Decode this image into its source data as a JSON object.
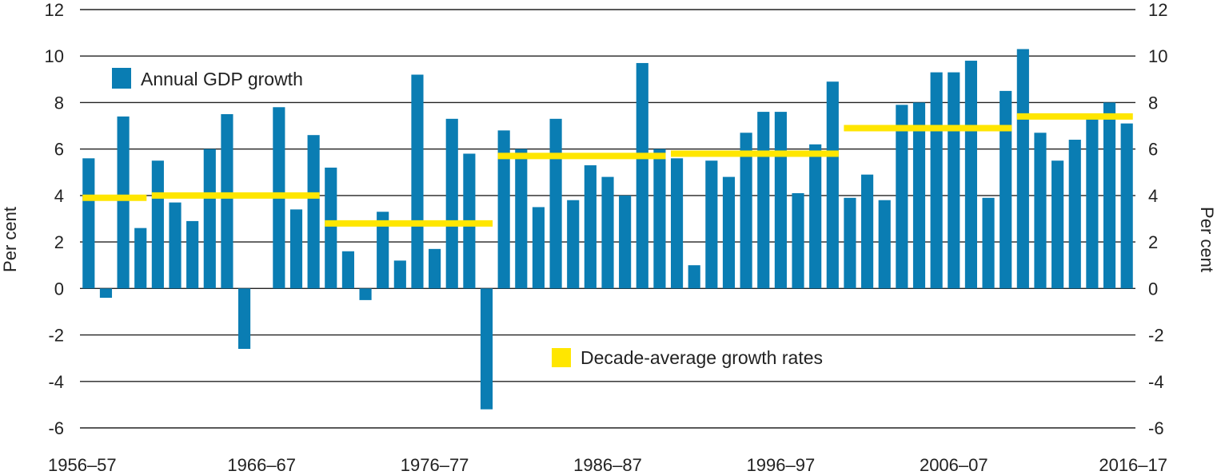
{
  "chart_data": {
    "type": "bar",
    "title": "",
    "xlabel": "",
    "ylabel": "Per cent",
    "ylabel_right": "Per cent",
    "ylim": [
      -6,
      12
    ],
    "yticks": [
      -6,
      -4,
      -2,
      0,
      2,
      4,
      6,
      8,
      10,
      12
    ],
    "grid": true,
    "start_year": 1956,
    "x_tick_labels": [
      "1956–57",
      "1966–67",
      "1976–77",
      "1986–87",
      "1996–97",
      "2006–07",
      "2016–17"
    ],
    "colors": {
      "bars": "#0a7db3",
      "averages": "#ffe600",
      "grid": "#222222",
      "text": "#222222"
    },
    "series": [
      {
        "name": "Annual GDP growth",
        "type": "bar",
        "values": [
          5.6,
          -0.4,
          7.4,
          2.6,
          5.5,
          3.7,
          2.9,
          6.0,
          7.5,
          -2.6,
          0.0,
          7.8,
          3.4,
          6.6,
          5.2,
          1.6,
          -0.5,
          3.3,
          1.2,
          9.2,
          1.7,
          7.3,
          5.8,
          -5.2,
          6.8,
          6.0,
          3.5,
          7.3,
          3.8,
          5.3,
          4.8,
          4.0,
          9.7,
          6.0,
          5.6,
          1.0,
          5.5,
          4.8,
          6.7,
          7.6,
          7.6,
          4.1,
          6.2,
          8.9,
          3.9,
          4.9,
          3.8,
          7.9,
          8.0,
          9.3,
          9.3,
          9.8,
          3.9,
          8.5,
          10.3,
          6.7,
          5.5,
          6.4,
          7.5,
          8.0,
          7.1
        ]
      },
      {
        "name": "Decade-average growth rates",
        "type": "segments",
        "segments": [
          {
            "from": 0,
            "to": 3,
            "value": 3.9
          },
          {
            "from": 4,
            "to": 13,
            "value": 4.0
          },
          {
            "from": 14,
            "to": 23,
            "value": 2.8
          },
          {
            "from": 24,
            "to": 33,
            "value": 5.7
          },
          {
            "from": 34,
            "to": 43,
            "value": 5.8
          },
          {
            "from": 44,
            "to": 53,
            "value": 6.9
          },
          {
            "from": 54,
            "to": 60,
            "value": 7.4
          }
        ]
      }
    ],
    "legend": {
      "bars_label": "Annual GDP growth",
      "bars_placement": "top-left",
      "averages_label": "Decade-average growth rates",
      "averages_placement": "lower-center"
    }
  }
}
